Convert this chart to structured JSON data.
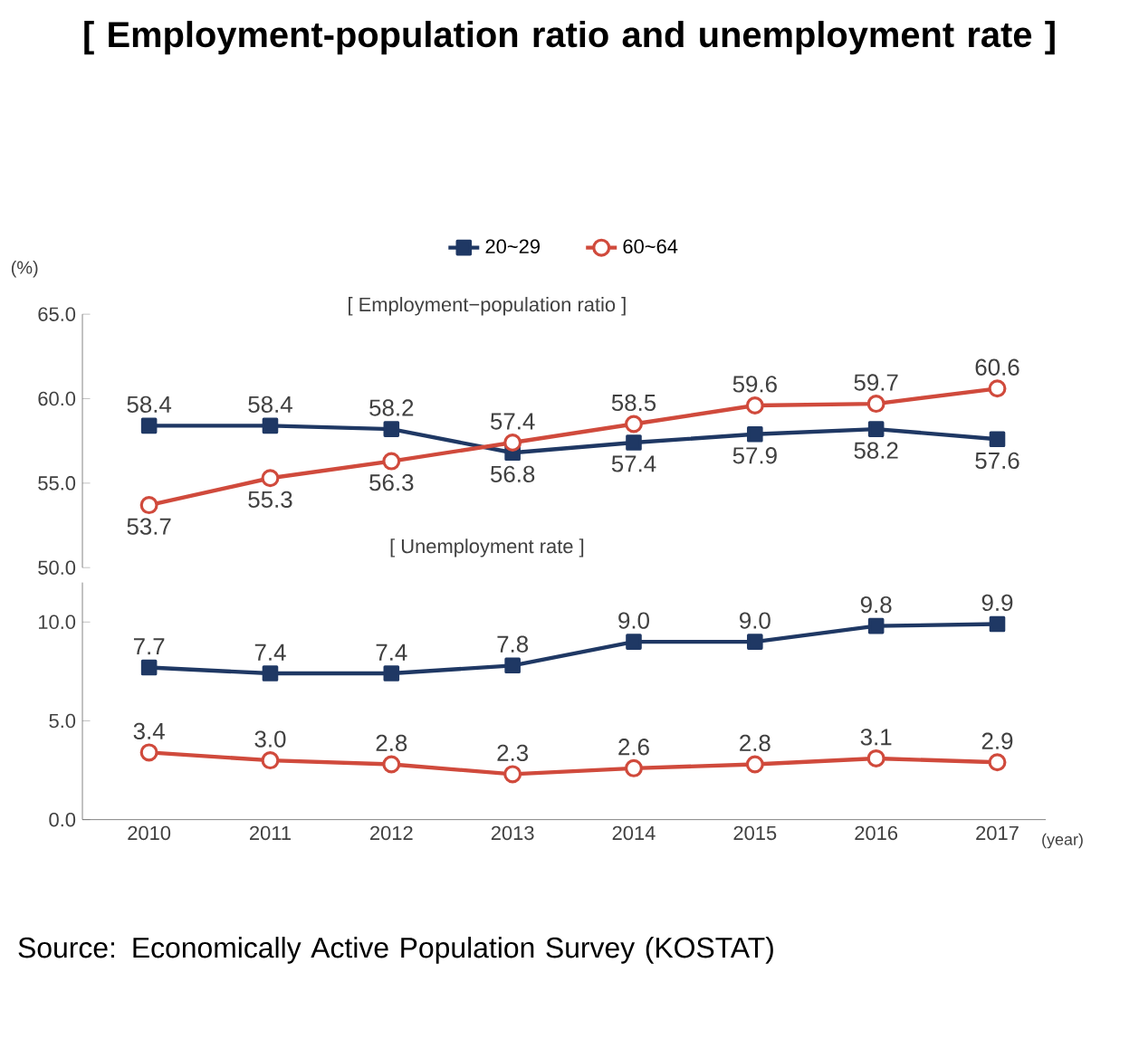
{
  "chart_data": [
    {
      "type": "line",
      "title": "[ Employment-population ratio and unemployment rate ]",
      "subtitle": "[ Employment−population ratio ]",
      "ylabel": "(%)",
      "categories": [
        "2010",
        "2011",
        "2012",
        "2013",
        "2014",
        "2015",
        "2016",
        "2017"
      ],
      "tick_labels": "y",
      "ylim": [
        50,
        65
      ],
      "yticks": [
        {
          "value": 50,
          "label": "50.0"
        },
        {
          "value": 55,
          "label": "55.0"
        },
        {
          "value": 60,
          "label": "60.0"
        },
        {
          "value": 65,
          "label": "65.0"
        }
      ],
      "legend": "top",
      "series": [
        {
          "name": "20~29",
          "color": "#1f3864",
          "marker": "square",
          "values": [
            58.4,
            58.4,
            58.2,
            56.8,
            57.4,
            57.9,
            58.2,
            57.6
          ],
          "value_labels": [
            "58.4",
            "58.4",
            "58.2",
            "56.8",
            "57.4",
            "57.9",
            "58.2",
            "57.6"
          ]
        },
        {
          "name": "60~64",
          "color": "#d04a3c",
          "marker": "circle",
          "values": [
            53.7,
            55.3,
            56.3,
            57.4,
            58.5,
            59.6,
            59.7,
            60.6
          ],
          "value_labels": [
            "53.7",
            "55.3",
            "56.3",
            "57.4",
            "58.5",
            "59.6",
            "59.7",
            "60.6"
          ]
        }
      ]
    },
    {
      "type": "line",
      "subtitle": "[ Unemployment rate ]",
      "xlabel": "(year)",
      "categories": [
        "2010",
        "2011",
        "2012",
        "2013",
        "2014",
        "2015",
        "2016",
        "2017"
      ],
      "ylim": [
        0,
        12
      ],
      "yticks": [
        {
          "value": 0,
          "label": "0.0"
        },
        {
          "value": 5,
          "label": "5.0"
        },
        {
          "value": 10,
          "label": "10.0"
        }
      ],
      "annotations": [
        "Source: Economically Active Population Survey (KOSTAT)"
      ],
      "series": [
        {
          "color": "#1f3864",
          "marker": "square",
          "values": [
            7.7,
            7.4,
            7.4,
            7.8,
            9.0,
            9.0,
            9.8,
            9.9
          ],
          "value_labels": [
            "7.7",
            "7.4",
            "7.4",
            "7.8",
            "9.0",
            "9.0",
            "9.8",
            "9.9"
          ]
        },
        {
          "color": "#d04a3c",
          "marker": "circle",
          "values": [
            3.4,
            3.0,
            2.8,
            2.3,
            2.6,
            2.8,
            3.1,
            2.9
          ],
          "value_labels": [
            "3.4",
            "3.0",
            "2.8",
            "2.3",
            "2.6",
            "2.8",
            "3.1",
            "2.9"
          ]
        }
      ]
    }
  ]
}
